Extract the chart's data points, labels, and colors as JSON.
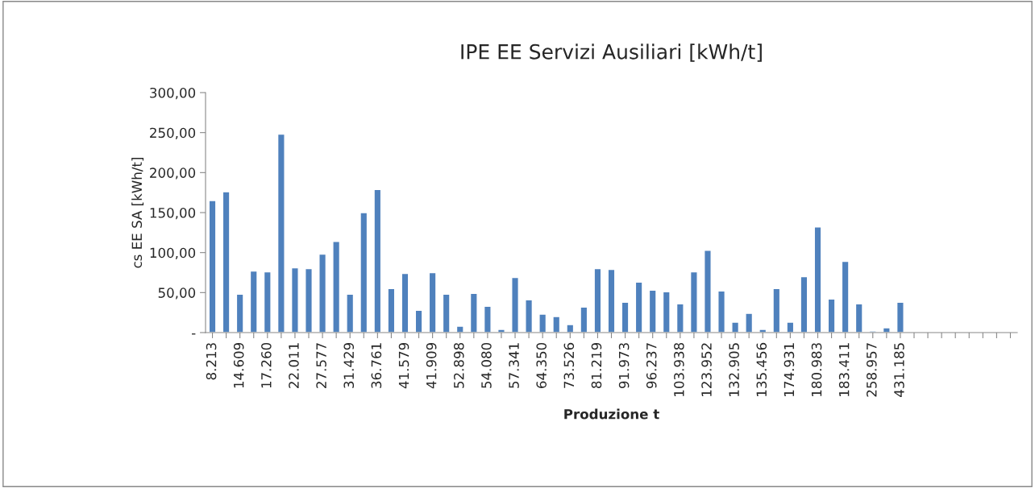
{
  "chart_data": {
    "type": "bar",
    "title": "IPE EE Servizi Ausiliari [kWh/t]",
    "xlabel": "Produzione t",
    "ylabel": "cs EE SA [kWh/t]",
    "categories": [
      "8.213",
      null,
      "14.609",
      null,
      "17.260",
      null,
      "22.011",
      null,
      "27.577",
      null,
      "31.429",
      null,
      "36.761",
      null,
      "41.579",
      null,
      "41.909",
      null,
      "52.898",
      null,
      "54.080",
      null,
      "57.341",
      null,
      "64.350",
      null,
      "73.526",
      null,
      "81.219",
      null,
      "91.973",
      null,
      "96.237",
      null,
      "103.938",
      null,
      "123.952",
      null,
      "132.905",
      null,
      "135.456",
      null,
      "174.931",
      null,
      "180.983",
      null,
      "183.411",
      null,
      "258.957",
      null,
      "431.185",
      null,
      null,
      null,
      null,
      null,
      null,
      null,
      null
    ],
    "values": [
      165,
      176,
      48,
      77,
      76,
      248,
      81,
      80,
      98,
      114,
      48,
      150,
      179,
      55,
      74,
      28,
      75,
      48,
      8,
      49,
      33,
      4,
      69,
      41,
      23,
      20,
      10,
      32,
      80,
      79,
      38,
      63,
      53,
      51,
      36,
      76,
      103,
      52,
      13,
      24,
      4,
      55,
      13,
      70,
      132,
      42,
      89,
      36,
      2,
      6,
      38,
      null,
      null,
      null,
      null,
      null,
      null,
      null,
      null
    ],
    "color": "#4f81bd",
    "ylim": [
      0,
      300
    ],
    "yticks": [
      {
        "value": 0,
        "label": "-"
      },
      {
        "value": 50,
        "label": "50,00"
      },
      {
        "value": 100,
        "label": "100,00"
      },
      {
        "value": 150,
        "label": "150,00"
      },
      {
        "value": 200,
        "label": "200,00"
      },
      {
        "value": 250,
        "label": "250,00"
      },
      {
        "value": 300,
        "label": "300,00"
      }
    ],
    "grid": false,
    "legend": false
  }
}
